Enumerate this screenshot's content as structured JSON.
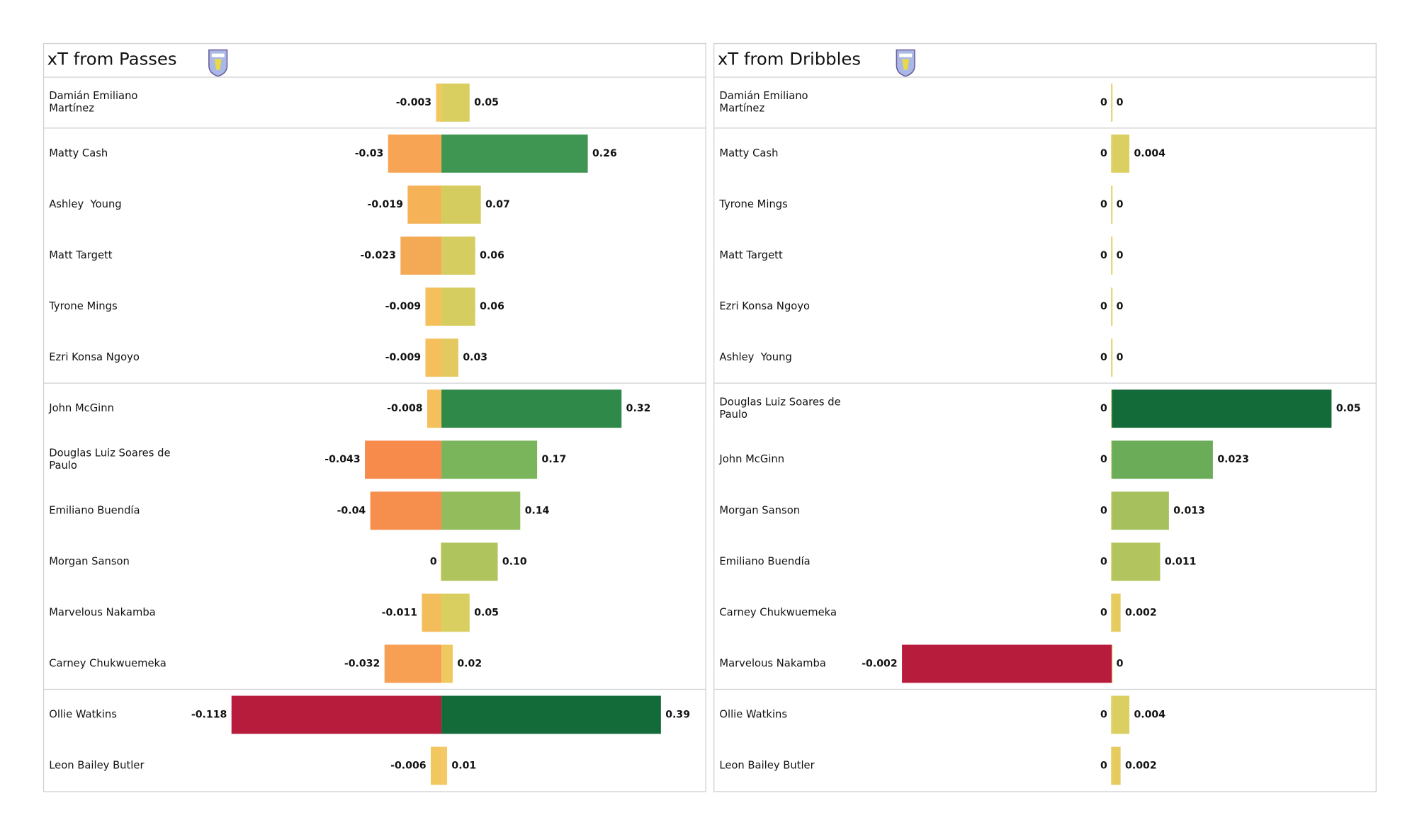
{
  "chart_data": [
    {
      "type": "diverging-bar",
      "title": "xT from Passes",
      "categories": [
        "Damián Emiliano Martínez",
        "Matty Cash",
        "Ashley  Young",
        "Matt Targett",
        "Tyrone Mings",
        "Ezri Konsa Ngoyo",
        "John McGinn",
        "Douglas Luiz Soares de Paulo",
        "Emiliano Buendía",
        "Morgan Sanson",
        "Marvelous Nakamba",
        "Carney Chukwuemeka",
        "Ollie Watkins",
        "Leon Bailey Butler"
      ],
      "negative": {
        "values": [
          -0.003,
          -0.03,
          -0.019,
          -0.023,
          -0.009,
          -0.009,
          -0.008,
          -0.043,
          -0.04,
          0,
          -0.011,
          -0.032,
          -0.118,
          -0.006
        ],
        "value_labels": [
          "-0.003",
          "-0.03",
          "-0.019",
          "-0.023",
          "-0.009",
          "-0.009",
          "-0.008",
          "-0.043",
          "-0.04",
          "0",
          "-0.011",
          "-0.032",
          "-0.118",
          "-0.006"
        ],
        "colors": [
          "#f3c65f",
          "#f7a555",
          "#f5b257",
          "#f4aa55",
          "#f5c05c",
          "#f5c05c",
          "#f5c05c",
          "#f68b4c",
          "#f68e4e",
          "#f5c85f",
          "#f4bd5b",
          "#f79f53",
          "#b81c3c",
          "#f3c75f"
        ]
      },
      "positive": {
        "values": [
          0.05,
          0.26,
          0.07,
          0.06,
          0.06,
          0.03,
          0.32,
          0.17,
          0.14,
          0.1,
          0.05,
          0.02,
          0.39,
          0.01
        ],
        "value_labels": [
          "0.05",
          "0.26",
          "0.07",
          "0.06",
          "0.06",
          "0.03",
          "0.32",
          "0.17",
          "0.14",
          "0.10",
          "0.05",
          "0.02",
          "0.39",
          "0.01"
        ],
        "colors": [
          "#d9ce60",
          "#3f9652",
          "#d4cc5e",
          "#d6cd60",
          "#d6cd60",
          "#e4c960",
          "#2f8a4a",
          "#7ab55b",
          "#93bc5c",
          "#b0c45e",
          "#d9ce60",
          "#f0c860",
          "#146b3a",
          "#f4c864"
        ]
      },
      "xlim": [
        -0.146,
        0.46
      ],
      "separators_after": [
        0,
        5,
        11
      ]
    },
    {
      "type": "diverging-bar",
      "title": "xT from Dribbles",
      "categories": [
        "Damián Emiliano Martínez",
        "Matty Cash",
        "Tyrone Mings",
        "Matt Targett",
        "Ezri Konsa Ngoyo",
        "Ashley  Young",
        "Douglas Luiz Soares de Paulo",
        "John McGinn",
        "Morgan Sanson",
        "Emiliano Buendía",
        "Carney Chukwuemeka",
        "Marvelous Nakamba",
        "Ollie Watkins",
        "Leon Bailey Butler"
      ],
      "negative": {
        "values": [
          0,
          0,
          0,
          0,
          0,
          0,
          0,
          0,
          0,
          0,
          0,
          -0.002,
          0,
          0
        ],
        "value_labels": [
          "0",
          "0",
          "0",
          "0",
          "0",
          "0",
          "0",
          "0",
          "0",
          "0",
          "0",
          "-0.002",
          "0",
          "0"
        ],
        "colors": [
          "#e0cf60",
          "#e0cf60",
          "#e0cf60",
          "#e0cf60",
          "#e0cf60",
          "#e0cf60",
          "#e0cf60",
          "#e0cf60",
          "#e0cf60",
          "#e0cf60",
          "#e0cf60",
          "#b81c3c",
          "#e0cf60",
          "#e0cf60"
        ]
      },
      "positive": {
        "values": [
          0,
          0.004,
          0,
          0,
          0,
          0,
          0.05,
          0.023,
          0.013,
          0.011,
          0.002,
          0,
          0.004,
          0.002
        ],
        "value_labels": [
          "0",
          "0.004",
          "0",
          "0",
          "0",
          "0",
          "0.05",
          "0.023",
          "0.013",
          "0.011",
          "0.002",
          "0",
          "0.004",
          "0.002"
        ],
        "colors": [
          "#e0cf60",
          "#dccf62",
          "#e0cf60",
          "#e0cf60",
          "#e0cf60",
          "#e0cf60",
          "#146b3a",
          "#6aac58",
          "#a6c05e",
          "#b2c45e",
          "#e6cb5f",
          "#e0cf60",
          "#dccf62",
          "#e6cb5f"
        ]
      },
      "xlim": [
        -0.002476,
        0.0589
      ],
      "separators_after": [
        0,
        5,
        11
      ]
    }
  ]
}
